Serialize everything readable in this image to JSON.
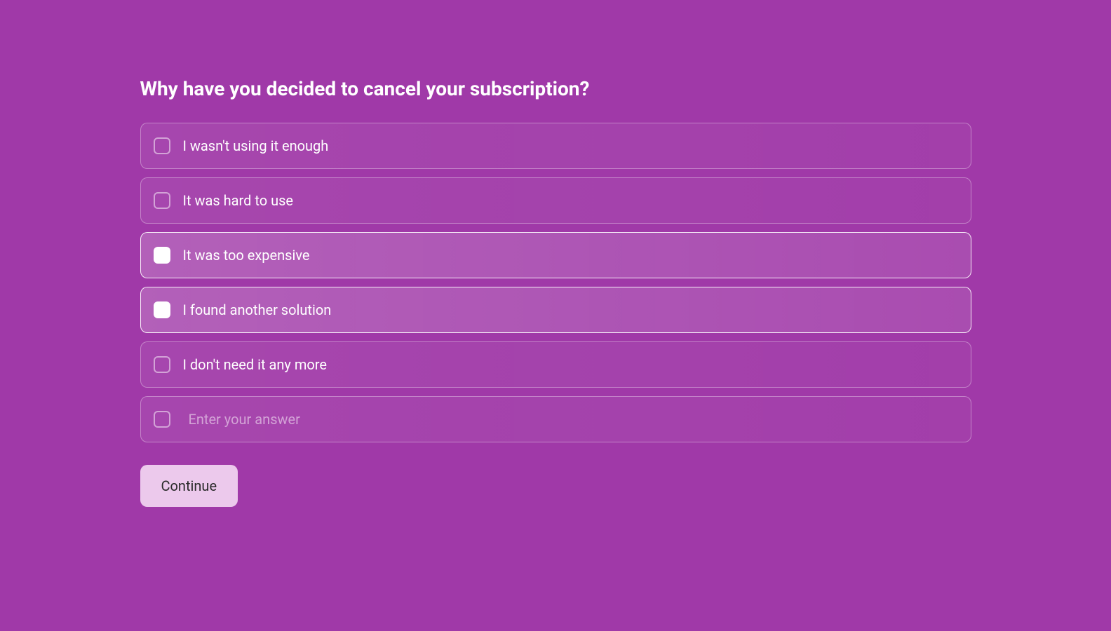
{
  "survey": {
    "title": "Why have you decided to cancel your subscription?",
    "options": [
      {
        "label": "I wasn't using it enough",
        "selected": false
      },
      {
        "label": "It was hard to use",
        "selected": false
      },
      {
        "label": "It was too expensive",
        "selected": true
      },
      {
        "label": "I found another solution",
        "selected": true
      },
      {
        "label": "I don't need it any more",
        "selected": false
      }
    ],
    "custom_placeholder": "Enter your answer",
    "continue_label": "Continue"
  },
  "colors": {
    "background": "#a039a8",
    "button_bg": "#ecc9ec",
    "text": "#ffffff"
  }
}
